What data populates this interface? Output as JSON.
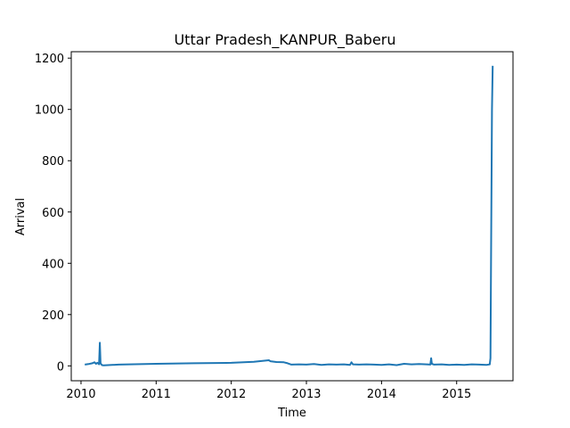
{
  "chart_data": {
    "type": "line",
    "title": "Uttar Pradesh_KANPUR_Baberu",
    "xlabel": "Time",
    "ylabel": "Arrival",
    "x_ticks": [
      "2010",
      "2011",
      "2012",
      "2013",
      "2014",
      "2015"
    ],
    "y_ticks": [
      "0",
      "200",
      "400",
      "600",
      "800",
      "1000",
      "1200"
    ],
    "xlim": [
      2009.87,
      2015.75
    ],
    "ylim": [
      -58,
      1225
    ],
    "grid": false,
    "legend": "none",
    "line_color": "#1f77b4",
    "series": [
      {
        "x": [
          2010.05,
          2010.1,
          2010.15,
          2010.18,
          2010.2,
          2010.22,
          2010.24,
          2010.25,
          2010.26,
          2010.27,
          2010.28,
          2010.3,
          2010.5,
          2011.0,
          2011.5,
          2012.0,
          2012.3,
          2012.5,
          2012.52,
          2012.6,
          2012.7,
          2012.75,
          2012.8,
          2012.9,
          2013.0,
          2013.1,
          2013.2,
          2013.3,
          2013.4,
          2013.5,
          2013.58,
          2013.6,
          2013.62,
          2013.7,
          2013.8,
          2013.9,
          2014.0,
          2014.1,
          2014.2,
          2014.3,
          2014.4,
          2014.5,
          2014.6,
          2014.65,
          2014.66,
          2014.67,
          2014.7,
          2014.8,
          2014.9,
          2015.0,
          2015.1,
          2015.2,
          2015.3,
          2015.4,
          2015.44,
          2015.45,
          2015.46,
          2015.47,
          2015.48
        ],
        "values": [
          5,
          7,
          10,
          14,
          8,
          12,
          6,
          90,
          10,
          6,
          3,
          2,
          5,
          8,
          10,
          12,
          16,
          22,
          18,
          15,
          14,
          10,
          5,
          6,
          5,
          7,
          4,
          6,
          5,
          6,
          4,
          14,
          6,
          5,
          6,
          5,
          4,
          6,
          3,
          8,
          6,
          7,
          6,
          5,
          30,
          8,
          5,
          6,
          4,
          5,
          4,
          6,
          5,
          4,
          6,
          30,
          500,
          1000,
          1170
        ]
      }
    ]
  }
}
